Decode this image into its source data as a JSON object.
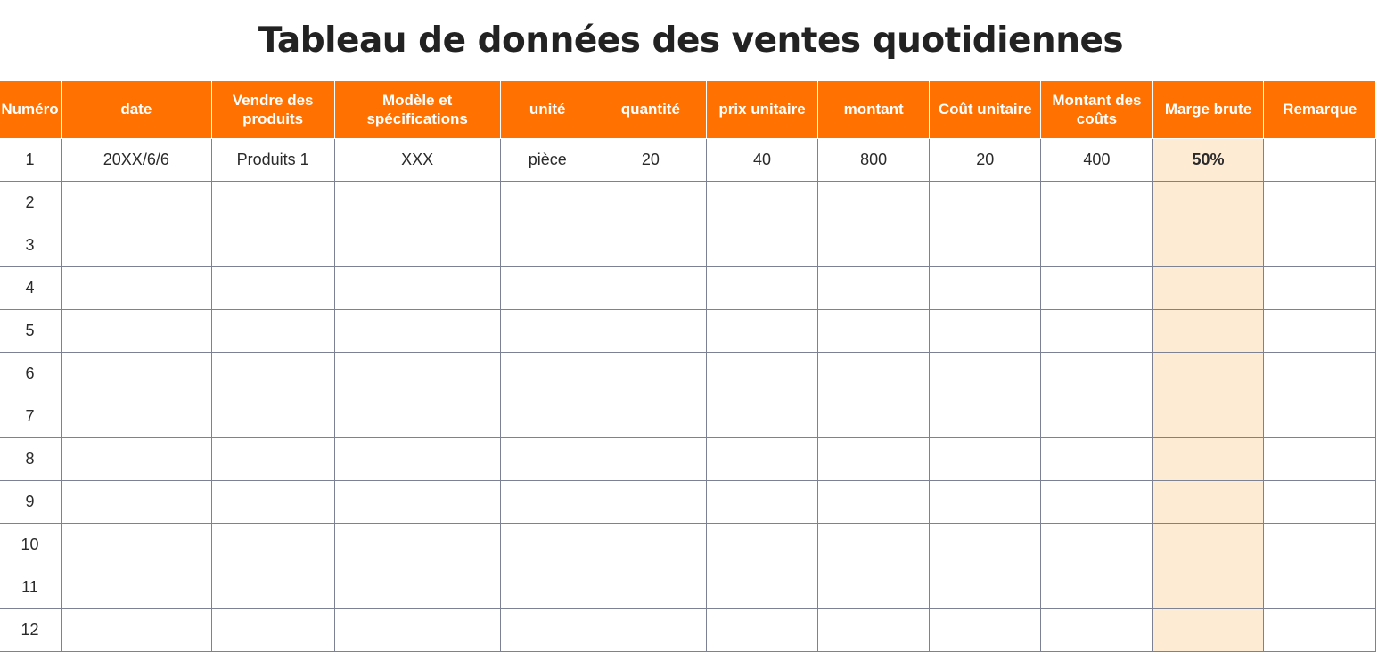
{
  "title": "Tableau de données des ventes quotidiennes",
  "colors": {
    "header_bg": "#ff7100",
    "header_text": "#ffffff",
    "margin_column_bg": "#fdebd4",
    "grid_line": "#7d8194"
  },
  "table": {
    "headers": [
      "Numéro",
      "date",
      "Vendre des produits",
      "Modèle et spécifications",
      "unité",
      "quantité",
      "prix unitaire",
      "montant",
      "Coût unitaire",
      "Montant des coûts",
      "Marge brute",
      "Remarque"
    ],
    "rows": [
      [
        "1",
        "20XX/6/6",
        "Produits 1",
        "XXX",
        "pièce",
        "20",
        "40",
        "800",
        "20",
        "400",
        "50%",
        ""
      ],
      [
        "2",
        "",
        "",
        "",
        "",
        "",
        "",
        "",
        "",
        "",
        "",
        ""
      ],
      [
        "3",
        "",
        "",
        "",
        "",
        "",
        "",
        "",
        "",
        "",
        "",
        ""
      ],
      [
        "4",
        "",
        "",
        "",
        "",
        "",
        "",
        "",
        "",
        "",
        "",
        ""
      ],
      [
        "5",
        "",
        "",
        "",
        "",
        "",
        "",
        "",
        "",
        "",
        "",
        ""
      ],
      [
        "6",
        "",
        "",
        "",
        "",
        "",
        "",
        "",
        "",
        "",
        "",
        ""
      ],
      [
        "7",
        "",
        "",
        "",
        "",
        "",
        "",
        "",
        "",
        "",
        "",
        ""
      ],
      [
        "8",
        "",
        "",
        "",
        "",
        "",
        "",
        "",
        "",
        "",
        "",
        ""
      ],
      [
        "9",
        "",
        "",
        "",
        "",
        "",
        "",
        "",
        "",
        "",
        "",
        ""
      ],
      [
        "10",
        "",
        "",
        "",
        "",
        "",
        "",
        "",
        "",
        "",
        "",
        ""
      ],
      [
        "11",
        "",
        "",
        "",
        "",
        "",
        "",
        "",
        "",
        "",
        "",
        ""
      ],
      [
        "12",
        "",
        "",
        "",
        "",
        "",
        "",
        "",
        "",
        "",
        "",
        ""
      ]
    ]
  }
}
